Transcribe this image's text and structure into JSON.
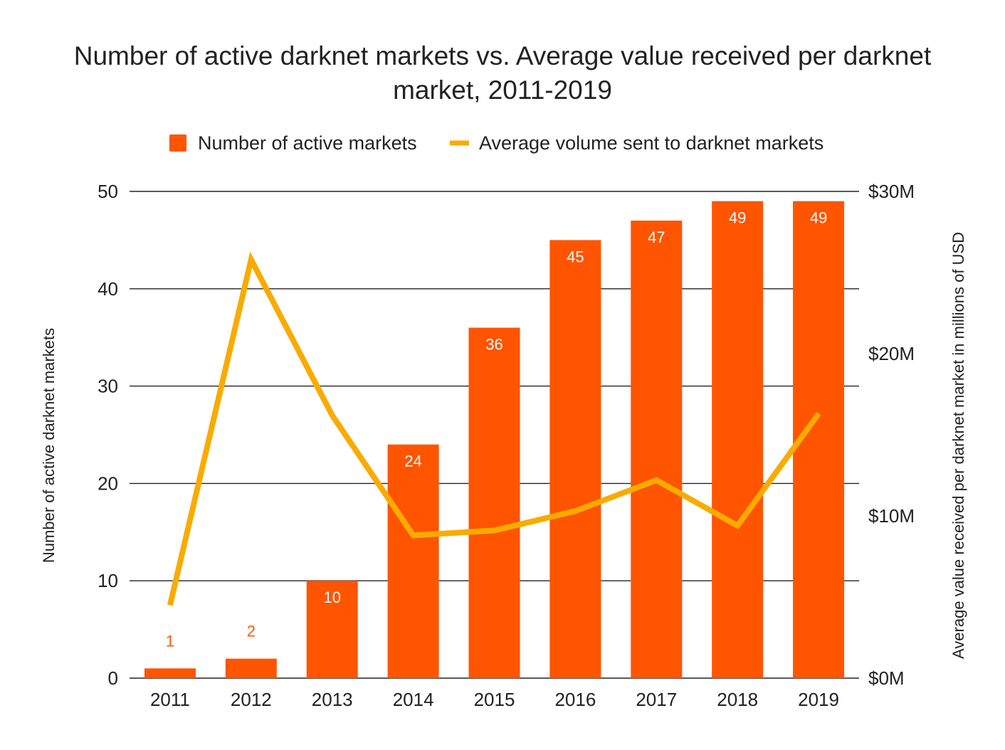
{
  "chart_data": {
    "type": "bar",
    "title_lines": [
      "Number of active darknet markets vs. Average value received per darknet",
      "market, 2011-2019"
    ],
    "categories": [
      "2011",
      "2012",
      "2013",
      "2014",
      "2015",
      "2016",
      "2017",
      "2018",
      "2019"
    ],
    "series": [
      {
        "name": "Number of active markets",
        "type": "bar",
        "axis": "left",
        "color": "#ff5400",
        "values": [
          1,
          2,
          10,
          24,
          36,
          45,
          47,
          49,
          49
        ],
        "labels": [
          "1",
          "2",
          "10",
          "24",
          "36",
          "45",
          "47",
          "49",
          "49"
        ]
      },
      {
        "name": "Average volume sent to darknet markets",
        "type": "line",
        "axis": "right",
        "color": "#f9ab00",
        "values": [
          4.5,
          25.8,
          16.2,
          8.8,
          9.1,
          10.3,
          12.2,
          9.4,
          16.3
        ]
      }
    ],
    "y_left": {
      "label": "Number of active darknet markets",
      "min": 0,
      "max": 50,
      "ticks": [
        0,
        10,
        20,
        30,
        40,
        50
      ],
      "tick_labels": [
        "0",
        "10",
        "20",
        "30",
        "40",
        "50"
      ]
    },
    "y_right": {
      "label": "Average value received per darknet market in millions of USD",
      "min": 0,
      "max": 30,
      "ticks": [
        0,
        10,
        20,
        30
      ],
      "tick_labels": [
        "$0M",
        "$10M",
        "$20M",
        "$30M"
      ]
    },
    "grid": true,
    "legend_position": "top-center",
    "bar_label_colors": {
      "inside": "#ffffff",
      "outside": "#ff5400"
    }
  }
}
